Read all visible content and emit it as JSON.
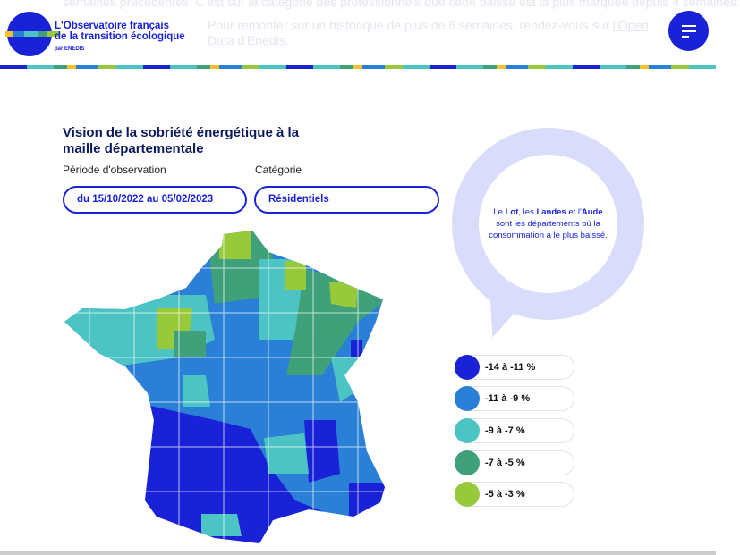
{
  "background_text": {
    "line1": "semaines précédentes. C'est sur la catégorie des professionnels que cette baisse est la plus marquée depuis 4 semaines.",
    "line2_prefix": "Pour remonter sur un historique de plus de 6 semaines, rendez-vous sur ",
    "line2_link": "l'Open Data d'Enedis",
    "line2_suffix": "."
  },
  "header": {
    "brand_line1": "L'Observatoire français",
    "brand_line2": "de la transition écologique",
    "brand_by": "par ENEDIS"
  },
  "section": {
    "title": "Vision de la sobriété énergétique à la maille départementale",
    "period_label": "Période d'observation",
    "period_value": "du 15/10/2022 au 05/02/2023",
    "category_label": "Catégorie",
    "category_value": "Résidentiels"
  },
  "callout": {
    "p1": "Le ",
    "b1": "Lot",
    "p2": ", les ",
    "b2": "Landes",
    "p3": " et l'",
    "b3": "Aude",
    "p4": " sont les départements où la consommation a le plus baissé."
  },
  "legend": [
    {
      "label": "-14 à -11 %",
      "color": "#1a22d8"
    },
    {
      "label": "-11 à -9 %",
      "color": "#2a7fd6"
    },
    {
      "label": "-9 à -7 %",
      "color": "#4dc4c4"
    },
    {
      "label": "-7 à -5 %",
      "color": "#3fa07a"
    },
    {
      "label": "-5 à -3 %",
      "color": "#98c93a"
    }
  ]
}
